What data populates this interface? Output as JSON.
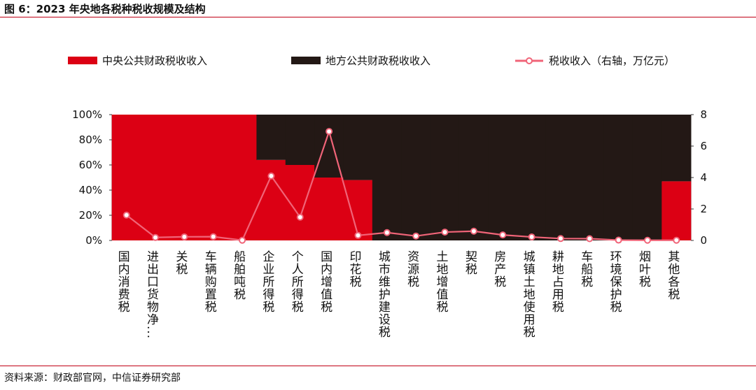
{
  "figure_title": "图 6：2023 年央地各税种税收规模及结构",
  "source": "资料来源：财政部官网，中信证券研究部",
  "colors": {
    "central": "#dc0014",
    "local": "#231815",
    "line": "#f06478",
    "rule": "#c00015"
  },
  "chart_data": {
    "type": "bar",
    "stacked": true,
    "categories": [
      "国内消费税",
      "进出口货物净...",
      "关税",
      "车辆购置税",
      "船舶吨税",
      "企业所得税",
      "个人所得税",
      "国内增值税",
      "印花税",
      "城市维护建设税",
      "资源税",
      "土地增值税",
      "契税",
      "房产税",
      "城镇土地使用税",
      "耕地占用税",
      "车船税",
      "环境保护税",
      "烟叶税",
      "其他各税"
    ],
    "series": [
      {
        "name": "中央公共财政税收收入",
        "axis": "left",
        "values": [
          100,
          100,
          100,
          100,
          100,
          64,
          60,
          50,
          48,
          0,
          0,
          0,
          0,
          0,
          0,
          0,
          0,
          0,
          0,
          47
        ]
      },
      {
        "name": "地方公共财政税收收入",
        "axis": "left",
        "values": [
          0,
          0,
          0,
          0,
          0,
          36,
          40,
          50,
          52,
          100,
          100,
          100,
          100,
          100,
          100,
          100,
          100,
          100,
          100,
          53
        ]
      },
      {
        "name": "税收收入（右轴，万亿元）",
        "type": "line",
        "axis": "right",
        "values": [
          1.61,
          0.19,
          0.23,
          0.24,
          0.01,
          4.1,
          1.48,
          6.93,
          0.32,
          0.5,
          0.28,
          0.53,
          0.59,
          0.35,
          0.22,
          0.12,
          0.11,
          0.02,
          0.01,
          0.01
        ]
      }
    ],
    "y_left": {
      "min": 0,
      "max": 100,
      "ticks": [
        "0%",
        "20%",
        "40%",
        "60%",
        "80%",
        "100%"
      ]
    },
    "y_right": {
      "min": 0,
      "max": 8,
      "ticks": [
        "0",
        "2",
        "4",
        "6",
        "8"
      ]
    },
    "legend_position": "top",
    "grid": false
  }
}
